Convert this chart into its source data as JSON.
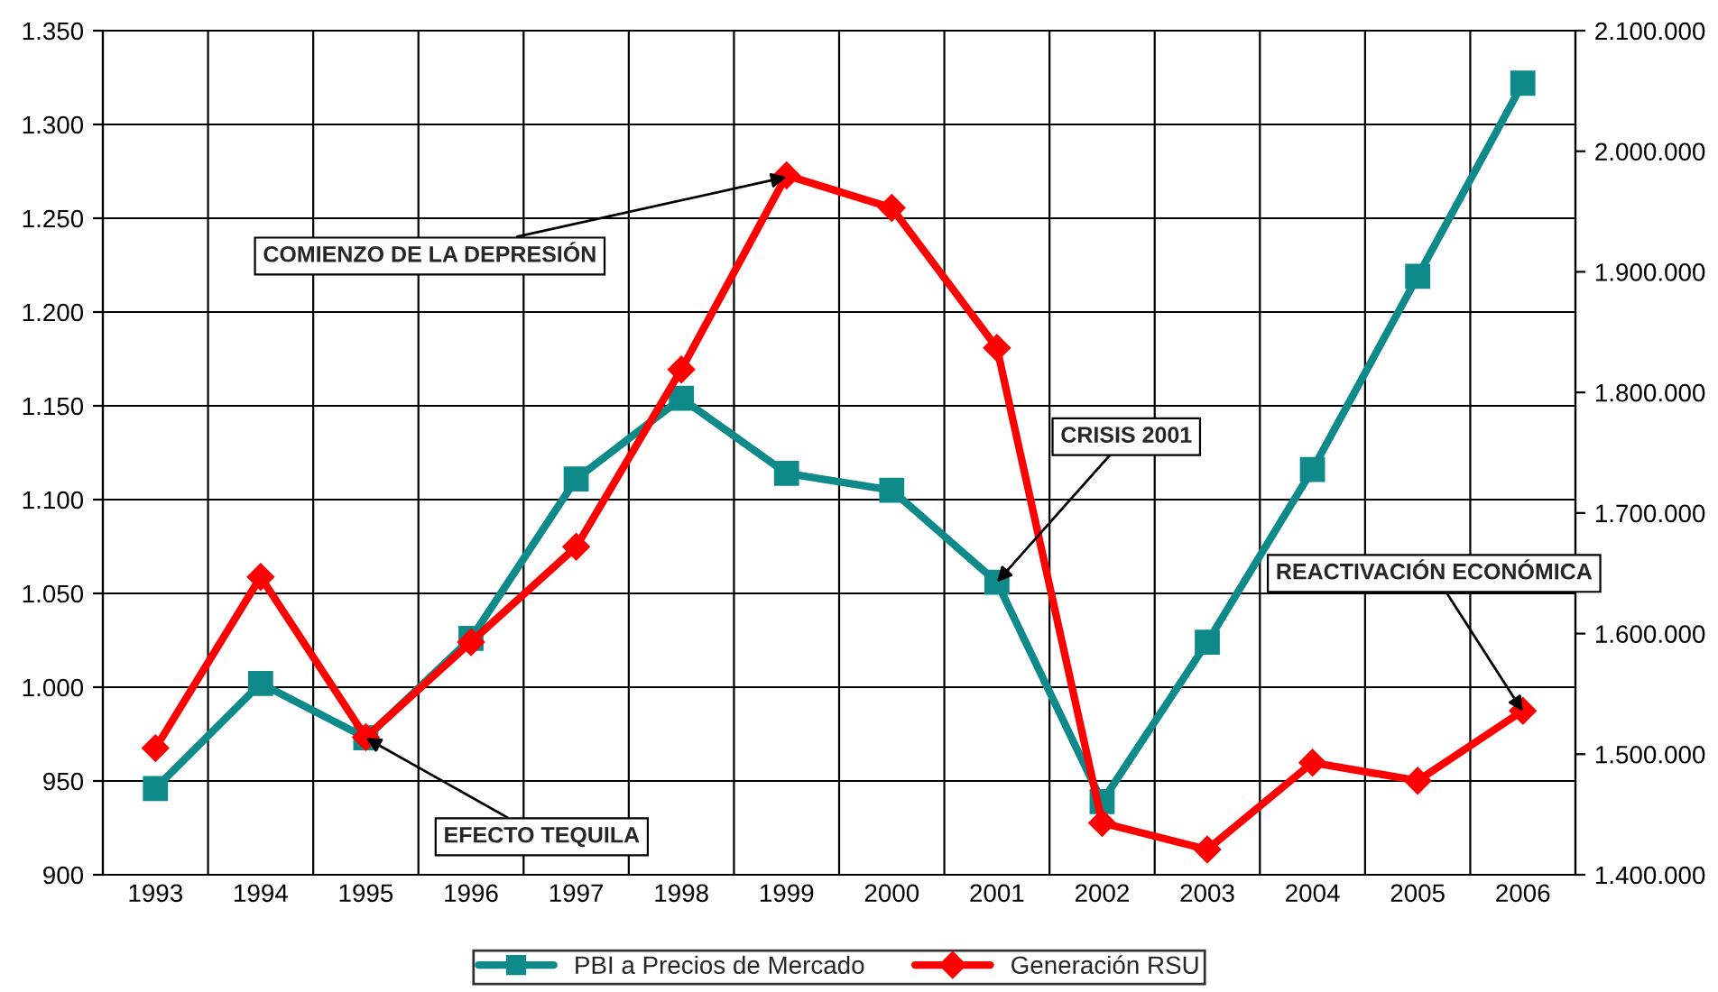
{
  "chart_data": {
    "type": "line",
    "categories": [
      "1993",
      "1994",
      "1995",
      "1996",
      "1997",
      "1998",
      "1999",
      "2000",
      "2001",
      "2002",
      "2003",
      "2004",
      "2005",
      "2006"
    ],
    "series": [
      {
        "name": "PBI a Precios de Mercado",
        "color": "#0f8a8a",
        "marker": "square",
        "values": [
          946,
          1002,
          973,
          1026,
          1111,
          1154,
          1114,
          1105,
          1056,
          939,
          1024,
          1116,
          1219,
          1322
        ]
      },
      {
        "name": "Generación RSU",
        "color": "#ff0000",
        "marker": "diamond",
        "axis": "y2",
        "values": [
          1505000,
          1647000,
          1514000,
          1593000,
          1672000,
          1819000,
          1980000,
          1953000,
          1837000,
          1443000,
          1421000,
          1493000,
          1478000,
          1536000
        ]
      }
    ],
    "ylim": [
      900,
      1350
    ],
    "yticks": [
      {
        "value": 900,
        "label": "900"
      },
      {
        "value": 950,
        "label": "950"
      },
      {
        "value": 1000,
        "label": "1.000"
      },
      {
        "value": 1050,
        "label": "1.050"
      },
      {
        "value": 1100,
        "label": "1.100"
      },
      {
        "value": 1150,
        "label": "1.150"
      },
      {
        "value": 1200,
        "label": "1.200"
      },
      {
        "value": 1250,
        "label": "1.250"
      },
      {
        "value": 1300,
        "label": "1.300"
      },
      {
        "value": 1350,
        "label": "1.350"
      }
    ],
    "y2lim": [
      1400000,
      2100000
    ],
    "y2ticks": [
      {
        "value": 1400000,
        "label": "1.400.000"
      },
      {
        "value": 1500000,
        "label": "1.500.000"
      },
      {
        "value": 1600000,
        "label": "1.600.000"
      },
      {
        "value": 1700000,
        "label": "1.700.000"
      },
      {
        "value": 1800000,
        "label": "1.800.000"
      },
      {
        "value": 1900000,
        "label": "1.900.000"
      },
      {
        "value": 2000000,
        "label": "2.000.000"
      },
      {
        "value": 2100000,
        "label": "2.100.000"
      }
    ],
    "annotations": [
      {
        "text": "COMIENZO DE LA DEPRESIÓN",
        "x": "1999",
        "y": 1272
      },
      {
        "text": "EFECTO TEQUILA",
        "x": "1995",
        "y": 973
      },
      {
        "text": "CRISIS 2001",
        "x": "2001",
        "y": 1056
      },
      {
        "text": "REACTIVACIÓN ECONÓMICA",
        "x": "2006",
        "y": 987
      }
    ],
    "grid": true,
    "legend": "bottom",
    "line_style": "solid"
  }
}
